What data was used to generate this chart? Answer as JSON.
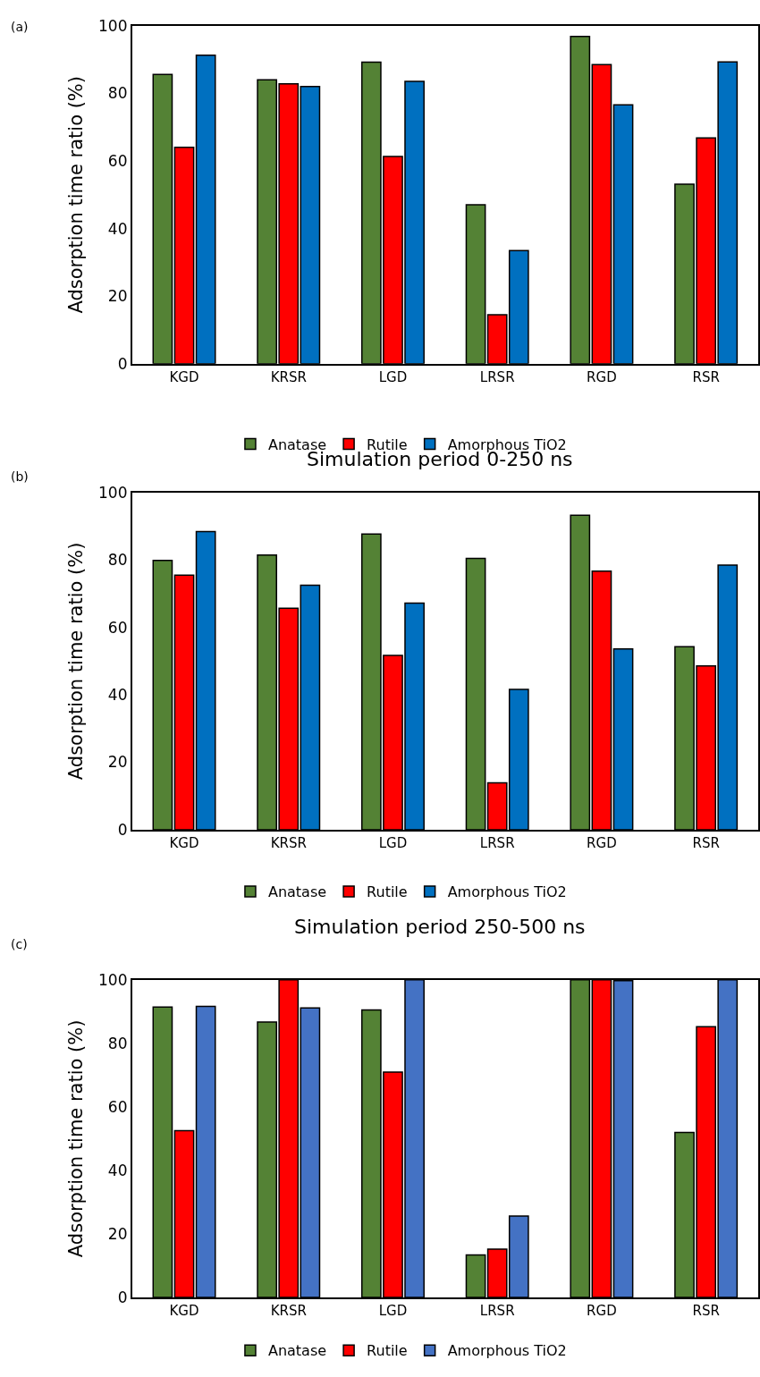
{
  "chart_data": [
    {
      "type": "bar",
      "annotations": [
        "(a)"
      ],
      "ylabel": "Adsorption time ratio (%)",
      "categories": [
        "KGD",
        "KRSR",
        "LGD",
        "LRSR",
        "RGD",
        "RSR"
      ],
      "ylim": [
        0,
        100
      ],
      "yticks": [
        0,
        20,
        40,
        60,
        80,
        100
      ],
      "legend": "bottom",
      "series": [
        {
          "name": "Anatase",
          "color": "#548235",
          "values": [
            85.6,
            84,
            89.2,
            47,
            96.8,
            53.1
          ]
        },
        {
          "name": "Rutile",
          "color": "#ff0000",
          "values": [
            64,
            82.8,
            61.3,
            14.5,
            88.5,
            66.8
          ]
        },
        {
          "name": "Amorphous TiO2",
          "color": "#0070c0",
          "values": [
            91.3,
            82,
            83.5,
            33.5,
            76.6,
            89.3
          ]
        }
      ]
    },
    {
      "type": "bar",
      "title": "Simulation period 0-250 ns",
      "annotations": [
        "(b)"
      ],
      "ylabel": "Adsorption time ratio (%)",
      "categories": [
        "KGD",
        "KRSR",
        "LGD",
        "LRSR",
        "RGD",
        "RSR"
      ],
      "ylim": [
        0,
        100
      ],
      "yticks": [
        0,
        20,
        40,
        60,
        80,
        100
      ],
      "legend": "bottom",
      "series": [
        {
          "name": "Anatase",
          "color": "#548235",
          "values": [
            79.9,
            81.5,
            87.7,
            80.5,
            93.3,
            54.3
          ]
        },
        {
          "name": "Rutile",
          "color": "#ff0000",
          "values": [
            75.5,
            65.7,
            51.7,
            13.9,
            76.7,
            48.6
          ]
        },
        {
          "name": "Amorphous TiO2",
          "color": "#0070c0",
          "values": [
            88.4,
            72.5,
            67.2,
            41.6,
            53.6,
            78.5
          ]
        }
      ]
    },
    {
      "type": "bar",
      "title": "Simulation period 250-500 ns",
      "annotations": [
        "(c)"
      ],
      "ylabel": "Adsorption time ratio (%)",
      "categories": [
        "KGD",
        "KRSR",
        "LGD",
        "LRSR",
        "RGD",
        "RSR"
      ],
      "ylim": [
        0,
        100
      ],
      "yticks": [
        0,
        20,
        40,
        60,
        80,
        100
      ],
      "legend": "bottom",
      "series": [
        {
          "name": "Anatase",
          "color": "#548235",
          "values": [
            91.4,
            86.7,
            90.5,
            13.4,
            100,
            51.9
          ]
        },
        {
          "name": "Rutile",
          "color": "#ff0000",
          "values": [
            52.5,
            100,
            70.9,
            15.2,
            100,
            85.2
          ]
        },
        {
          "name": "Amorphous TiO2",
          "color": "#4472c4",
          "values": [
            91.6,
            91.1,
            100,
            25.6,
            99.7,
            100
          ]
        }
      ]
    }
  ]
}
